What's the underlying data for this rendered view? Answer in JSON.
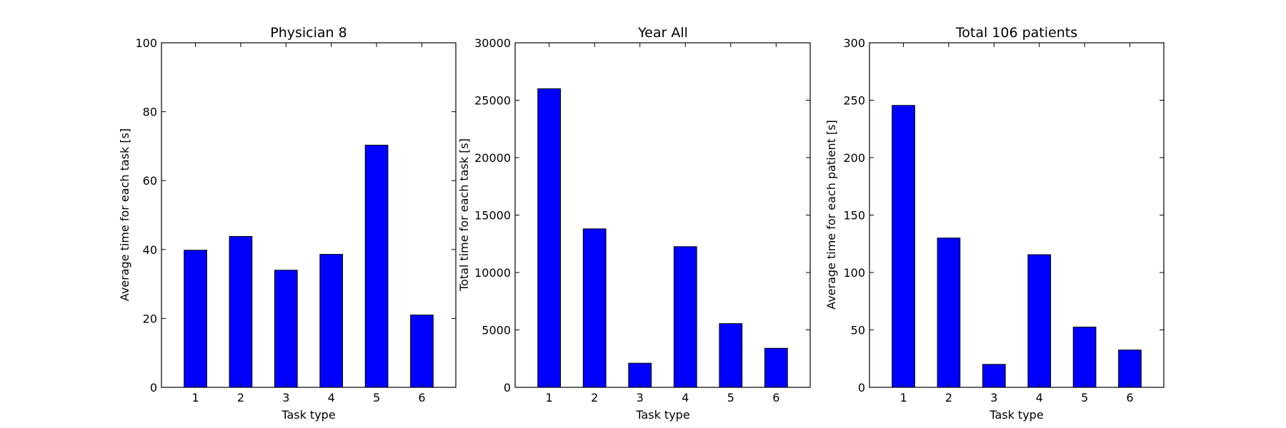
{
  "chart_data": [
    {
      "type": "bar",
      "title": "Physician 8",
      "xlabel": "Task type",
      "ylabel": "Average time for each task [s]",
      "categories": [
        "1",
        "2",
        "3",
        "4",
        "5",
        "6"
      ],
      "values": [
        39.8,
        43.8,
        34.0,
        38.6,
        70.3,
        21.0
      ],
      "ylim": [
        0,
        100
      ],
      "yticks": [
        "0",
        "20",
        "40",
        "60",
        "80",
        "100"
      ],
      "bar_color": "#0000ff",
      "grid": false
    },
    {
      "type": "bar",
      "title": "Year All",
      "xlabel": "Task type",
      "ylabel": "Total time for each task [s]",
      "categories": [
        "1",
        "2",
        "3",
        "4",
        "5",
        "6"
      ],
      "values": [
        26000,
        13800,
        2100,
        12250,
        5550,
        3400
      ],
      "ylim": [
        0,
        30000
      ],
      "yticks": [
        "0",
        "5000",
        "10000",
        "15000",
        "20000",
        "25000",
        "30000"
      ],
      "bar_color": "#0000ff",
      "grid": false
    },
    {
      "type": "bar",
      "title": "Total 106 patients",
      "xlabel": "Task type",
      "ylabel": "Average time for each patient [s]",
      "categories": [
        "1",
        "2",
        "3",
        "4",
        "5",
        "6"
      ],
      "values": [
        245.5,
        130.0,
        20.0,
        115.5,
        52.5,
        32.5
      ],
      "ylim": [
        0,
        300
      ],
      "yticks": [
        "0",
        "50",
        "100",
        "150",
        "200",
        "250",
        "300"
      ],
      "bar_color": "#0000ff",
      "grid": false
    }
  ]
}
